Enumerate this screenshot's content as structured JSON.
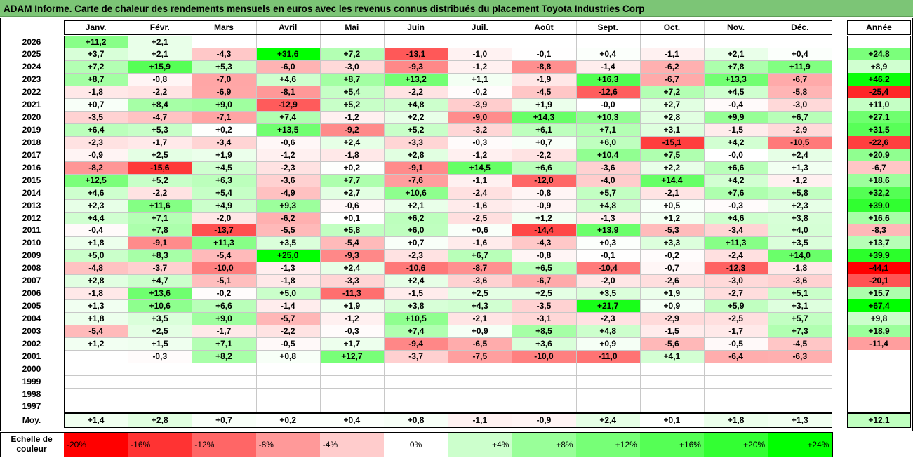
{
  "title": "ADAM Informe. Carte de chaleur des rendements mensuels en euros avec les revenus connus distribués du placement Toyota Industries Corp",
  "chart_data": {
    "type": "heatmap",
    "months": [
      "Janv.",
      "Févr.",
      "Mars",
      "Avril",
      "Mai",
      "Juin",
      "Juil.",
      "Août",
      "Sept.",
      "Oct.",
      "Nov.",
      "Déc."
    ],
    "annual_header": "Année",
    "rows": [
      {
        "year": "2026",
        "values": [
          "+11,2",
          "+2,1",
          "",
          "",
          "",
          "",
          "",
          "",
          "",
          "",
          "",
          ""
        ],
        "annual": ""
      },
      {
        "year": "2025",
        "values": [
          "+3,7",
          "+2,1",
          "-4,3",
          "+31,6",
          "+7,2",
          "-13,1",
          "-1,0",
          "-0,1",
          "+0,4",
          "-1,1",
          "+2,1",
          "+0,4"
        ],
        "annual": "+24,8"
      },
      {
        "year": "2024",
        "values": [
          "+7,2",
          "+15,9",
          "+5,3",
          "-6,0",
          "-3,0",
          "-9,3",
          "-1,2",
          "-8,8",
          "-1,4",
          "-6,2",
          "+7,8",
          "+11,9"
        ],
        "annual": "+8,9"
      },
      {
        "year": "2023",
        "values": [
          "+8,7",
          "-0,8",
          "-7,0",
          "+4,6",
          "+8,7",
          "+13,2",
          "+1,1",
          "-1,9",
          "+16,3",
          "-6,7",
          "+13,3",
          "-6,7"
        ],
        "annual": "+46,2"
      },
      {
        "year": "2022",
        "values": [
          "-1,8",
          "-2,2",
          "-6,9",
          "-8,1",
          "+5,4",
          "-2,2",
          "-0,2",
          "-4,5",
          "-12,6",
          "+7,2",
          "+4,5",
          "-5,8"
        ],
        "annual": "-25,4"
      },
      {
        "year": "2021",
        "values": [
          "+0,7",
          "+8,4",
          "+9,0",
          "-12,9",
          "+5,2",
          "+4,8",
          "-3,9",
          "+1,9",
          "-0,0",
          "+2,7",
          "-0,4",
          "-3,0"
        ],
        "annual": "+11,0"
      },
      {
        "year": "2020",
        "values": [
          "-3,5",
          "-4,7",
          "-7,1",
          "+7,4",
          "-1,2",
          "+2,2",
          "-9,0",
          "+14,3",
          "+10,3",
          "+2,8",
          "+9,9",
          "+6,7"
        ],
        "annual": "+27,1"
      },
      {
        "year": "2019",
        "values": [
          "+6,4",
          "+5,3",
          "+0,2",
          "+13,5",
          "-9,2",
          "+5,2",
          "-3,2",
          "+6,1",
          "+7,1",
          "+3,1",
          "-1,5",
          "-2,9"
        ],
        "annual": "+31,5"
      },
      {
        "year": "2018",
        "values": [
          "-2,3",
          "-1,7",
          "-3,4",
          "-0,6",
          "+2,4",
          "-3,3",
          "-0,3",
          "+0,7",
          "+6,0",
          "-15,1",
          "+4,2",
          "-10,5"
        ],
        "annual": "-22,6"
      },
      {
        "year": "2017",
        "values": [
          "-0,9",
          "+2,5",
          "+1,9",
          "-1,2",
          "-1,8",
          "+2,8",
          "-1,2",
          "-2,2",
          "+10,4",
          "+7,5",
          "-0,0",
          "+2,4"
        ],
        "annual": "+20,9"
      },
      {
        "year": "2016",
        "values": [
          "-8,2",
          "-15,6",
          "+4,5",
          "-2,3",
          "+0,2",
          "-9,1",
          "+14,5",
          "+6,6",
          "-3,6",
          "+2,2",
          "+6,6",
          "+1,3"
        ],
        "annual": "-6,7"
      },
      {
        "year": "2015",
        "values": [
          "+12,5",
          "+5,2",
          "+6,3",
          "-3,6",
          "+7,7",
          "-7,6",
          "-1,1",
          "-12,0",
          "-4,0",
          "+14,4",
          "+4,2",
          "-1,2"
        ],
        "annual": "+18,6"
      },
      {
        "year": "2014",
        "values": [
          "+4,6",
          "-2,2",
          "+5,4",
          "-4,9",
          "+2,7",
          "+10,6",
          "-2,4",
          "-0,8",
          "+5,7",
          "-2,1",
          "+7,6",
          "+5,8"
        ],
        "annual": "+32,2"
      },
      {
        "year": "2013",
        "values": [
          "+2,3",
          "+11,6",
          "+4,9",
          "+9,3",
          "-0,6",
          "+2,1",
          "-1,6",
          "-0,9",
          "+4,8",
          "+0,5",
          "-0,3",
          "+2,3"
        ],
        "annual": "+39,0"
      },
      {
        "year": "2012",
        "values": [
          "+4,4",
          "+7,1",
          "-2,0",
          "-6,2",
          "+0,1",
          "+6,2",
          "-2,5",
          "+1,2",
          "-1,3",
          "+1,2",
          "+4,6",
          "+3,8"
        ],
        "annual": "+16,6"
      },
      {
        "year": "2011",
        "values": [
          "-0,4",
          "+7,8",
          "-13,7",
          "-5,5",
          "+5,8",
          "+6,0",
          "+0,6",
          "-14,4",
          "+13,9",
          "-5,3",
          "-3,4",
          "+4,0"
        ],
        "annual": "-8,3"
      },
      {
        "year": "2010",
        "values": [
          "+1,8",
          "-9,1",
          "+11,3",
          "+3,5",
          "-5,4",
          "+0,7",
          "-1,6",
          "-4,3",
          "+0,3",
          "+3,3",
          "+11,3",
          "+3,5"
        ],
        "annual": "+13,7"
      },
      {
        "year": "2009",
        "values": [
          "+5,0",
          "+8,3",
          "-5,4",
          "+25,0",
          "-9,3",
          "-2,3",
          "+6,7",
          "-0,8",
          "-0,1",
          "-0,2",
          "-2,4",
          "+14,0"
        ],
        "annual": "+39,9"
      },
      {
        "year": "2008",
        "values": [
          "-4,8",
          "-3,7",
          "-10,0",
          "-1,3",
          "+2,4",
          "-10,6",
          "-8,7",
          "+6,5",
          "-10,4",
          "-0,7",
          "-12,3",
          "-1,8"
        ],
        "annual": "-44,1"
      },
      {
        "year": "2007",
        "values": [
          "+2,8",
          "+4,7",
          "-5,1",
          "-1,8",
          "-3,3",
          "+2,4",
          "-3,6",
          "-6,7",
          "-2,0",
          "-2,6",
          "-3,0",
          "-3,6"
        ],
        "annual": "-20,1"
      },
      {
        "year": "2006",
        "values": [
          "-1,8",
          "+13,6",
          "-0,2",
          "+5,0",
          "-11,3",
          "-1,5",
          "+2,5",
          "+2,5",
          "+3,5",
          "+1,9",
          "-2,7",
          "+5,1"
        ],
        "annual": "+15,7"
      },
      {
        "year": "2005",
        "values": [
          "+1,3",
          "+10,6",
          "+6,6",
          "-1,4",
          "+1,9",
          "+3,8",
          "+4,3",
          "-3,5",
          "+21,7",
          "+0,9",
          "+5,9",
          "+3,1"
        ],
        "annual": "+67,4"
      },
      {
        "year": "2004",
        "values": [
          "+1,8",
          "+3,5",
          "+9,0",
          "-5,7",
          "-1,2",
          "+10,5",
          "-2,1",
          "-3,1",
          "-2,3",
          "-2,9",
          "-2,5",
          "+5,7"
        ],
        "annual": "+9,8"
      },
      {
        "year": "2003",
        "values": [
          "-5,4",
          "+2,5",
          "-1,7",
          "-2,2",
          "-0,3",
          "+7,4",
          "+0,9",
          "+8,5",
          "+4,8",
          "-1,5",
          "-1,7",
          "+7,3"
        ],
        "annual": "+18,9"
      },
      {
        "year": "2002",
        "values": [
          "+1,2",
          "+1,5",
          "+7,1",
          "-0,5",
          "+1,7",
          "-9,4",
          "-6,5",
          "+3,6",
          "+0,9",
          "-5,6",
          "-0,5",
          "-4,5"
        ],
        "annual": "-11,4"
      },
      {
        "year": "2001",
        "values": [
          "",
          "-0,3",
          "+8,2",
          "+0,8",
          "+12,7",
          "-3,7",
          "-7,5",
          "-10,0",
          "-11,0",
          "+4,1",
          "-6,4",
          "-6,3"
        ],
        "annual": ""
      },
      {
        "year": "2000",
        "values": [
          "",
          "",
          "",
          "",
          "",
          "",
          "",
          "",
          "",
          "",
          "",
          ""
        ],
        "annual": ""
      },
      {
        "year": "1999",
        "values": [
          "",
          "",
          "",
          "",
          "",
          "",
          "",
          "",
          "",
          "",
          "",
          ""
        ],
        "annual": ""
      },
      {
        "year": "1998",
        "values": [
          "",
          "",
          "",
          "",
          "",
          "",
          "",
          "",
          "",
          "",
          "",
          ""
        ],
        "annual": ""
      },
      {
        "year": "1997",
        "values": [
          "",
          "",
          "",
          "",
          "",
          "",
          "",
          "",
          "",
          "",
          "",
          ""
        ],
        "annual": ""
      }
    ],
    "average": {
      "label": "Moy.",
      "values": [
        "+1,4",
        "+2,8",
        "+0,7",
        "+0,2",
        "+0,4",
        "+0,8",
        "-1,1",
        "-0,9",
        "+2,4",
        "+0,1",
        "+1,8",
        "+1,3"
      ],
      "annual": "+12,1"
    },
    "scale": {
      "label": "Echelle de couleur",
      "steps": [
        "-20%",
        "-16%",
        "-12%",
        "-8%",
        "-4%",
        "0%",
        "+4%",
        "+8%",
        "+12%",
        "+16%",
        "+20%",
        "+24%"
      ],
      "colors": [
        "#ff0000",
        "#ff3333",
        "#ff6666",
        "#ff9999",
        "#ffcccc",
        "#ffffff",
        "#ccffcc",
        "#99ff99",
        "#77ff77",
        "#55ff55",
        "#33ff33",
        "#00ff00"
      ]
    },
    "colors": {
      "negative_max": "#ff0000",
      "positive_max": "#00ff00",
      "neutral": "#ffffff",
      "title_bg": "#7cc576"
    }
  }
}
